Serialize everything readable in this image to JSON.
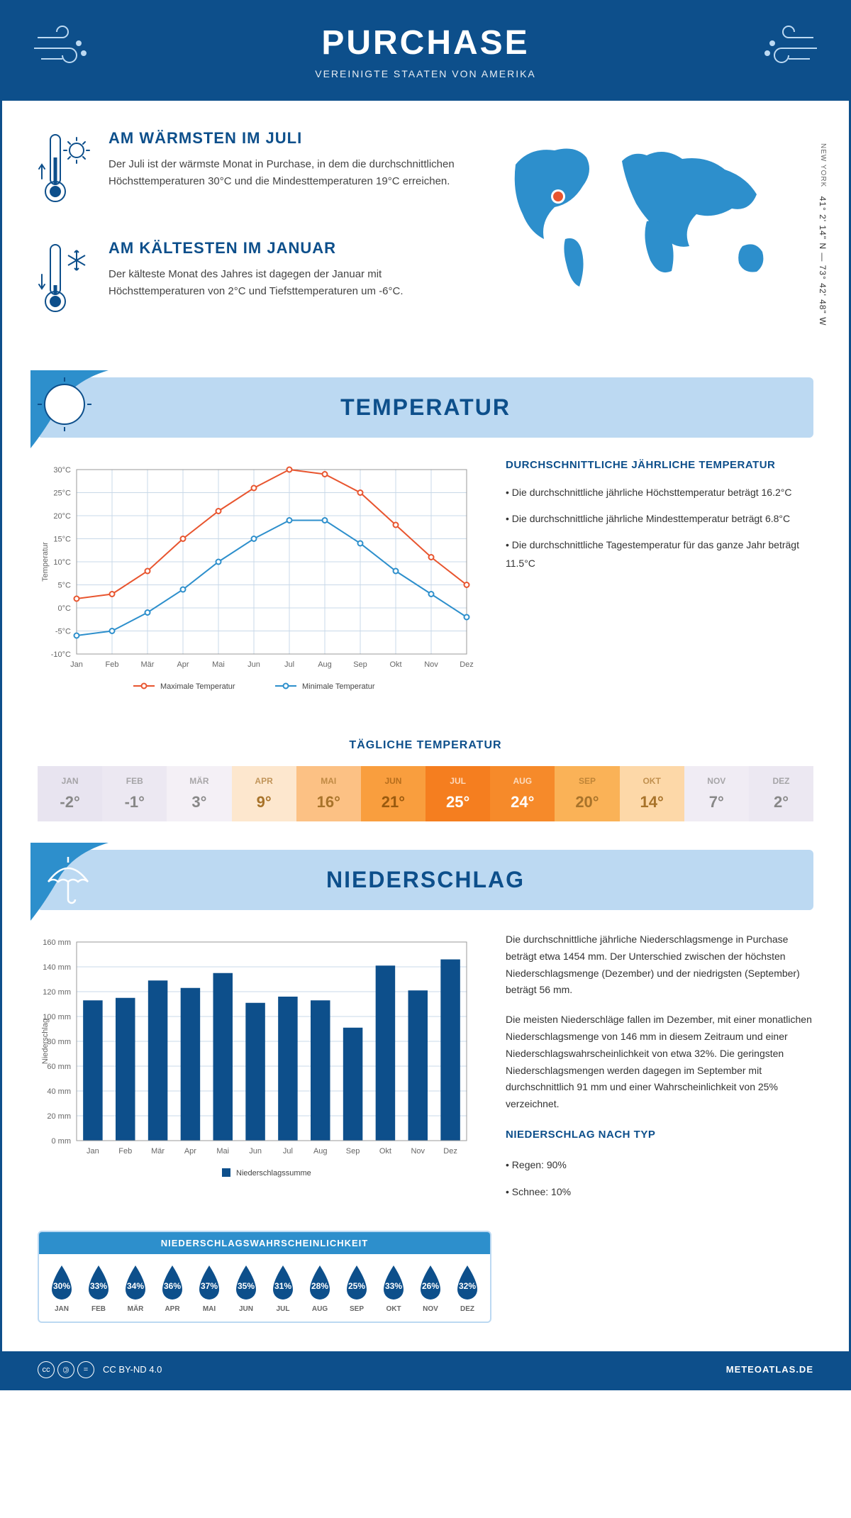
{
  "header": {
    "title": "PURCHASE",
    "subtitle": "VEREINIGTE STAATEN VON AMERIKA"
  },
  "coords": {
    "text": "41° 2' 14\" N — 73° 42' 48\" W",
    "loc": "NEW YORK"
  },
  "facts": {
    "warm": {
      "title": "AM WÄRMSTEN IM JULI",
      "text": "Der Juli ist der wärmste Monat in Purchase, in dem die durchschnittlichen Höchsttemperaturen 30°C und die Mindesttemperaturen 19°C erreichen."
    },
    "cold": {
      "title": "AM KÄLTESTEN IM JANUAR",
      "text": "Der kälteste Monat des Jahres ist dagegen der Januar mit Höchsttemperaturen von 2°C und Tiefsttemperaturen um -6°C."
    }
  },
  "temp_section": {
    "title": "TEMPERATUR",
    "chart": {
      "months": [
        "Jan",
        "Feb",
        "Mär",
        "Apr",
        "Mai",
        "Jun",
        "Jul",
        "Aug",
        "Sep",
        "Okt",
        "Nov",
        "Dez"
      ],
      "max": [
        2,
        3,
        8,
        15,
        21,
        26,
        30,
        29,
        25,
        18,
        11,
        5
      ],
      "min": [
        -6,
        -5,
        -1,
        4,
        10,
        15,
        19,
        19,
        14,
        8,
        3,
        -2
      ],
      "ylabel": "Temperatur",
      "ylim": [
        -10,
        30
      ],
      "ytick_step": 5,
      "max_color": "#e8552f",
      "min_color": "#2d8fcc",
      "grid_color": "#c8d8e8",
      "legend_max": "Maximale Temperatur",
      "legend_min": "Minimale Temperatur"
    },
    "side": {
      "title": "DURCHSCHNITTLICHE JÄHRLICHE TEMPERATUR",
      "items": [
        "• Die durchschnittliche jährliche Höchsttemperatur beträgt 16.2°C",
        "• Die durchschnittliche jährliche Mindesttemperatur beträgt 6.8°C",
        "• Die durchschnittliche Tagestemperatur für das ganze Jahr beträgt 11.5°C"
      ]
    },
    "daily": {
      "title": "TÄGLICHE TEMPERATUR",
      "months": [
        "JAN",
        "FEB",
        "MÄR",
        "APR",
        "MAI",
        "JUN",
        "JUL",
        "AUG",
        "SEP",
        "OKT",
        "NOV",
        "DEZ"
      ],
      "values": [
        "-2°",
        "-1°",
        "3°",
        "9°",
        "16°",
        "21°",
        "25°",
        "24°",
        "20°",
        "14°",
        "7°",
        "2°"
      ],
      "bg_colors": [
        "#e8e4f0",
        "#ece8f2",
        "#f4f0f6",
        "#fde7ce",
        "#fcc184",
        "#f99e3e",
        "#f57e1f",
        "#f68a2a",
        "#fab257",
        "#fdd8a8",
        "#f0ecf4",
        "#ece8f2"
      ],
      "fg_colors": [
        "#888",
        "#888",
        "#888",
        "#a8732a",
        "#a8732a",
        "#9a5a0e",
        "#fff",
        "#fff",
        "#a8732a",
        "#a8732a",
        "#888",
        "#888"
      ]
    }
  },
  "precip_section": {
    "title": "NIEDERSCHLAG",
    "chart": {
      "months": [
        "Jan",
        "Feb",
        "Mär",
        "Apr",
        "Mai",
        "Jun",
        "Jul",
        "Aug",
        "Sep",
        "Okt",
        "Nov",
        "Dez"
      ],
      "values": [
        113,
        115,
        129,
        123,
        135,
        111,
        116,
        113,
        91,
        141,
        121,
        146
      ],
      "ylabel": "Niederschlag",
      "ylim": [
        0,
        160
      ],
      "ytick_step": 20,
      "bar_color": "#0d4f8b",
      "grid_color": "#c8d8e8",
      "legend": "Niederschlagssumme"
    },
    "text": {
      "p1": "Die durchschnittliche jährliche Niederschlagsmenge in Purchase beträgt etwa 1454 mm. Der Unterschied zwischen der höchsten Niederschlagsmenge (Dezember) und der niedrigsten (September) beträgt 56 mm.",
      "p2": "Die meisten Niederschläge fallen im Dezember, mit einer monatlichen Niederschlagsmenge von 146 mm in diesem Zeitraum und einer Niederschlagswahrscheinlichkeit von etwa 32%. Die geringsten Niederschlagsmengen werden dagegen im September mit durchschnittlich 91 mm und einer Wahrscheinlichkeit von 25% verzeichnet.",
      "type_title": "NIEDERSCHLAG NACH TYP",
      "type_items": [
        "• Regen: 90%",
        "• Schnee: 10%"
      ]
    },
    "prob": {
      "title": "NIEDERSCHLAGSWAHRSCHEINLICHKEIT",
      "months": [
        "JAN",
        "FEB",
        "MÄR",
        "APR",
        "MAI",
        "JUN",
        "JUL",
        "AUG",
        "SEP",
        "OKT",
        "NOV",
        "DEZ"
      ],
      "values": [
        "30%",
        "33%",
        "34%",
        "36%",
        "37%",
        "35%",
        "31%",
        "28%",
        "25%",
        "33%",
        "26%",
        "32%"
      ],
      "drop_color": "#0d4f8b"
    }
  },
  "footer": {
    "license": "CC BY-ND 4.0",
    "site": "METEOATLAS.DE"
  },
  "colors": {
    "primary": "#0d4f8b",
    "accent": "#2d8fcc",
    "light": "#bcd9f2"
  }
}
